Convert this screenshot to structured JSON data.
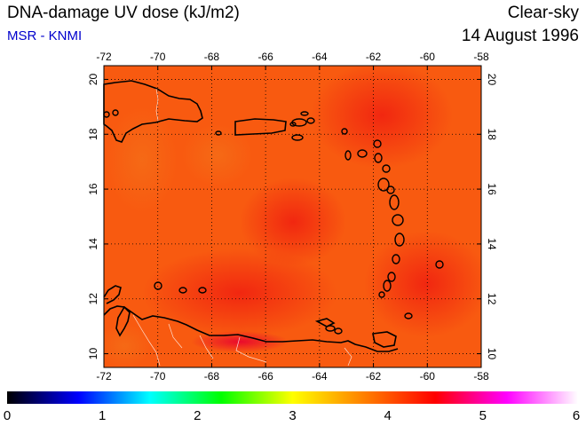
{
  "header": {
    "title": "DNA-damage UV dose (kJ/m2)",
    "subtitle": "MSR - KNMI",
    "sky": "Clear-sky",
    "date": "14 August 1996"
  },
  "map": {
    "lon_ticks": [
      "-72",
      "-70",
      "-68",
      "-66",
      "-64",
      "-62",
      "-60",
      "-58"
    ],
    "lat_ticks": [
      "10",
      "12",
      "14",
      "16",
      "18",
      "20"
    ],
    "lon_range": [
      -72,
      -58
    ],
    "lat_range": [
      9.5,
      20.5
    ],
    "field_color": "#f85a10",
    "field_color_high": "#f22a10",
    "coast_color": "#000000",
    "border_color": "#ffffff",
    "grid": "dotted"
  },
  "colorbar": {
    "ticks": [
      "0",
      "1",
      "2",
      "3",
      "4",
      "5",
      "6"
    ],
    "range": [
      0,
      6
    ],
    "stops": [
      "#000000",
      "#0000ff",
      "#00ffff",
      "#00ff00",
      "#ffff00",
      "#ff8000",
      "#ff0000",
      "#ff00ff",
      "#ffffff"
    ]
  }
}
